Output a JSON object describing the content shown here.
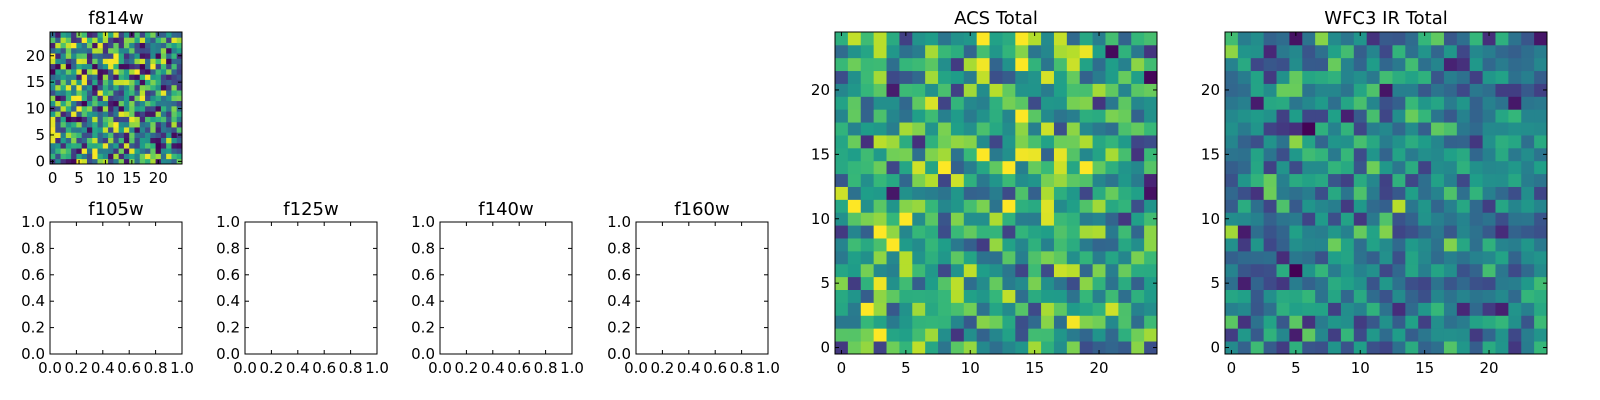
{
  "chart_data": [
    {
      "id": "f814w",
      "type": "heatmap",
      "title": "f814w",
      "grid_size": 25,
      "xlim": [
        -0.5,
        24.5
      ],
      "ylim": [
        -0.5,
        24.5
      ],
      "xticks": [
        0,
        5,
        10,
        15,
        20
      ],
      "yticks": [
        0,
        5,
        10,
        15,
        20
      ],
      "colormap": "viridis",
      "value_range": [
        0,
        1
      ],
      "seed": 814,
      "dist": "uniform",
      "grid": false
    },
    {
      "id": "f105w",
      "type": "heatmap",
      "title": "f105w",
      "xlim": [
        0,
        1
      ],
      "ylim": [
        0,
        1
      ],
      "xticks": [
        "0.0",
        "0.2",
        "0.4",
        "0.6",
        "0.8",
        "1.0"
      ],
      "yticks": [
        "0.0",
        "0.2",
        "0.4",
        "0.6",
        "0.8",
        "1.0"
      ],
      "empty": true
    },
    {
      "id": "f125w",
      "type": "heatmap",
      "title": "f125w",
      "xlim": [
        0,
        1
      ],
      "ylim": [
        0,
        1
      ],
      "xticks": [
        "0.0",
        "0.2",
        "0.4",
        "0.6",
        "0.8",
        "1.0"
      ],
      "yticks": [
        "0.0",
        "0.2",
        "0.4",
        "0.6",
        "0.8",
        "1.0"
      ],
      "empty": true
    },
    {
      "id": "f140w",
      "type": "heatmap",
      "title": "f140w",
      "xlim": [
        0,
        1
      ],
      "ylim": [
        0,
        1
      ],
      "xticks": [
        "0.0",
        "0.2",
        "0.4",
        "0.6",
        "0.8",
        "1.0"
      ],
      "yticks": [
        "0.0",
        "0.2",
        "0.4",
        "0.6",
        "0.8",
        "1.0"
      ],
      "empty": true
    },
    {
      "id": "f160w",
      "type": "heatmap",
      "title": "f160w",
      "xlim": [
        0,
        1
      ],
      "ylim": [
        0,
        1
      ],
      "xticks": [
        "0.0",
        "0.2",
        "0.4",
        "0.6",
        "0.8",
        "1.0"
      ],
      "yticks": [
        "0.0",
        "0.2",
        "0.4",
        "0.6",
        "0.8",
        "1.0"
      ],
      "empty": true
    },
    {
      "id": "acs_total",
      "type": "heatmap",
      "title": "ACS Total",
      "grid_size": 25,
      "xlim": [
        -0.5,
        24.5
      ],
      "ylim": [
        -0.5,
        24.5
      ],
      "xticks": [
        0,
        5,
        10,
        15,
        20
      ],
      "yticks": [
        0,
        5,
        10,
        15,
        20
      ],
      "colormap": "viridis",
      "value_range": [
        0,
        1
      ],
      "seed": 1001,
      "dist": "sum",
      "grid": false
    },
    {
      "id": "wfc3_ir_total",
      "type": "heatmap",
      "title": "WFC3 IR Total",
      "grid_size": 25,
      "xlim": [
        -0.5,
        24.5
      ],
      "ylim": [
        -0.5,
        24.5
      ],
      "xticks": [
        0,
        5,
        10,
        15,
        20
      ],
      "yticks": [
        0,
        5,
        10,
        15,
        20
      ],
      "colormap": "viridis",
      "value_range": [
        0,
        1
      ],
      "seed": 3003,
      "dist": "sum4",
      "grid": false
    }
  ],
  "colors": {
    "viridis": [
      "#440154",
      "#482878",
      "#3e4989",
      "#31688e",
      "#26828e",
      "#1f9e89",
      "#35b779",
      "#6ece58",
      "#b5de2b",
      "#fde725"
    ]
  }
}
